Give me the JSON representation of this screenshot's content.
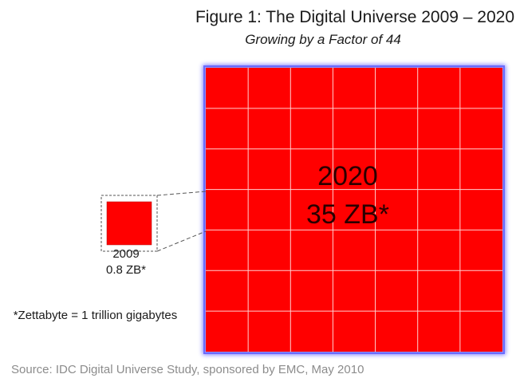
{
  "figure": {
    "title": "Figure 1:  The Digital Universe 2009 – 2020",
    "subtitle": "Growing by a Factor of 44",
    "footnote": "*Zettabyte = 1 trillion gigabytes",
    "source": "Source: IDC Digital Universe Study, sponsored by EMC, May 2010"
  },
  "colors": {
    "fill": "#ff0000",
    "glow": "#6b6bff",
    "grid": "#ffd0d0",
    "connector": "#555555"
  },
  "chart_data": {
    "type": "area-comparison",
    "title": "Figure 1:  The Digital Universe 2009 – 2020",
    "subtitle": "Growing by a Factor of 44",
    "unit": "ZB",
    "series": [
      {
        "year": "2009",
        "value": 0.8,
        "year_label": "2009",
        "value_label": "0.8 ZB*"
      },
      {
        "year": "2020",
        "value": 35,
        "year_label": "2020",
        "value_label": "35 ZB*"
      }
    ],
    "growth_factor": 44,
    "footnote": "*Zettabyte = 1 trillion gigabytes",
    "source": "Source: IDC Digital Universe Study, sponsored by EMC, May 2010"
  }
}
